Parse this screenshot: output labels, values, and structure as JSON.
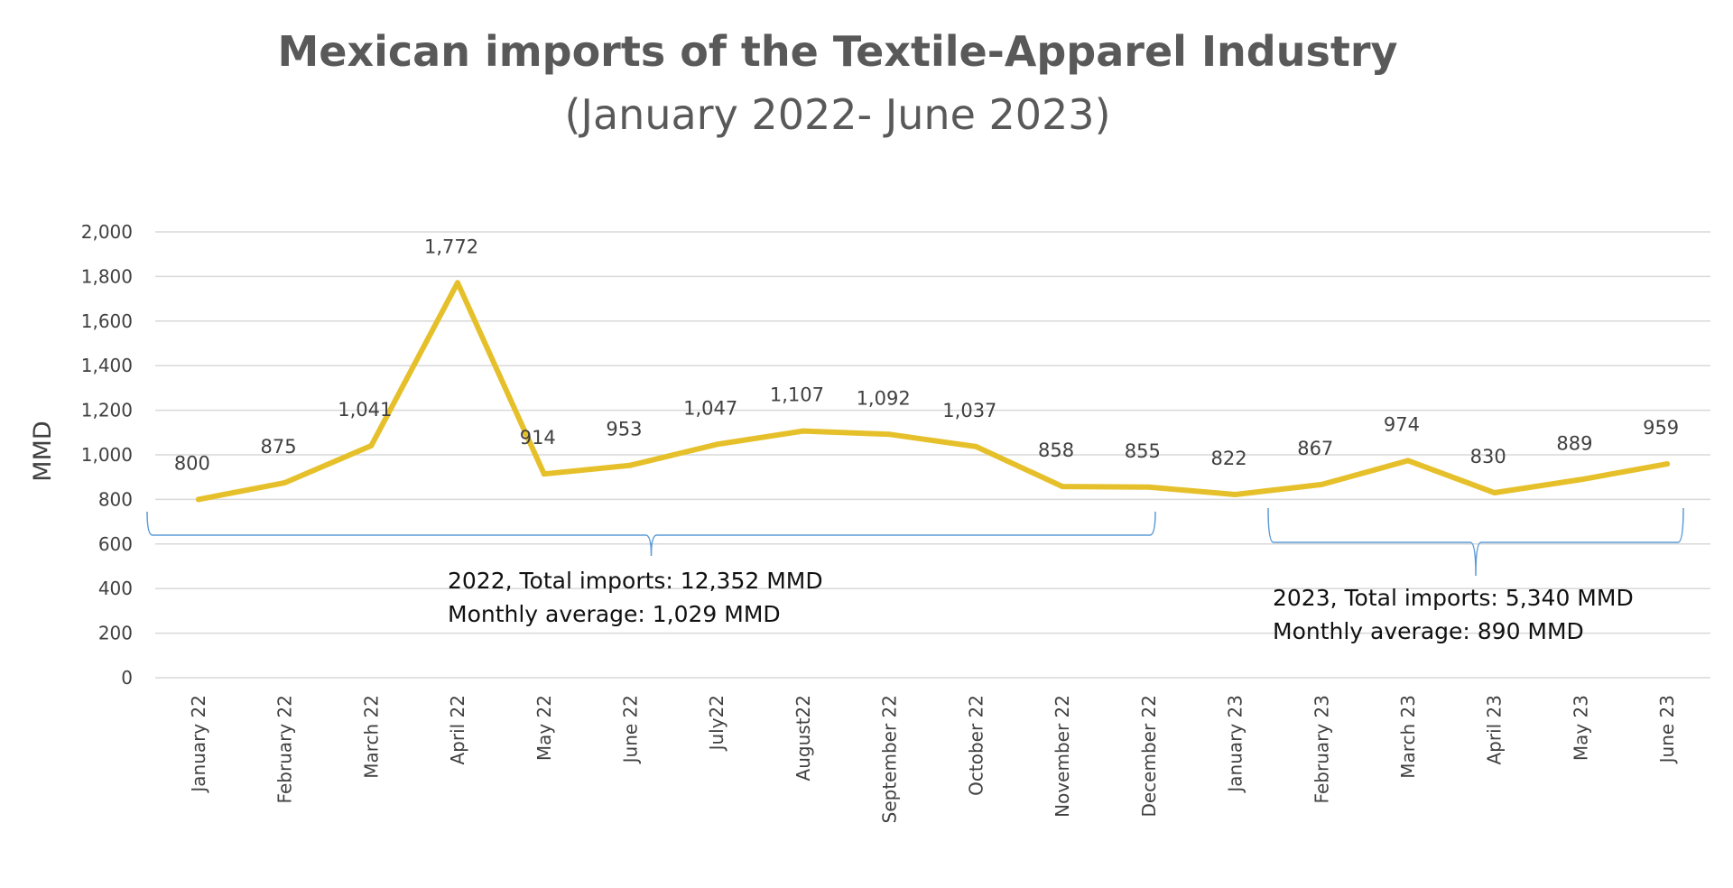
{
  "chart_data": {
    "type": "line",
    "title": "Mexican imports of the Textile-Apparel Industry",
    "subtitle": "(January 2022- June 2023)",
    "ylabel": "MMD",
    "ylim": [
      0,
      2000
    ],
    "yticks": [
      "0",
      "200",
      "400",
      "600",
      "800",
      "1,000",
      "1,200",
      "1,400",
      "1,600",
      "1,800",
      "2,000"
    ],
    "ytick_values": [
      0,
      200,
      400,
      600,
      800,
      1000,
      1200,
      1400,
      1600,
      1800,
      2000
    ],
    "grid": true,
    "categories": [
      "January 22",
      "February 22",
      "March 22",
      "April 22",
      "May 22",
      "June 22",
      "July22",
      "August22",
      "September 22",
      "October 22",
      "November 22",
      "December 22",
      "January 23",
      "February 23",
      "March 23",
      "April 23",
      "May 23",
      "June 23"
    ],
    "series": [
      {
        "values": [
          800,
          875,
          1041,
          1772,
          914,
          953,
          1047,
          1107,
          1092,
          1037,
          858,
          855,
          822,
          867,
          974,
          830,
          889,
          959
        ],
        "data_labels": [
          "800",
          "875",
          "1,041",
          "1,772",
          "914",
          "953",
          "1,047",
          "1,107",
          "1,092",
          "1,037",
          "858",
          "855",
          "822",
          "867",
          "974",
          "830",
          "889",
          "959"
        ],
        "color": "#E6C02A"
      }
    ],
    "annotations": [
      {
        "line1": "2022, Total imports: 12,352 MMD",
        "line2": "Monthly average: 1,029 MMD",
        "bracket_color": "#5B9BD5"
      },
      {
        "line1": "2023, Total imports: 5,340 MMD",
        "line2": "Monthly average: 890 MMD",
        "bracket_color": "#5B9BD5"
      }
    ],
    "gridline_color": "#D9D9D9"
  }
}
